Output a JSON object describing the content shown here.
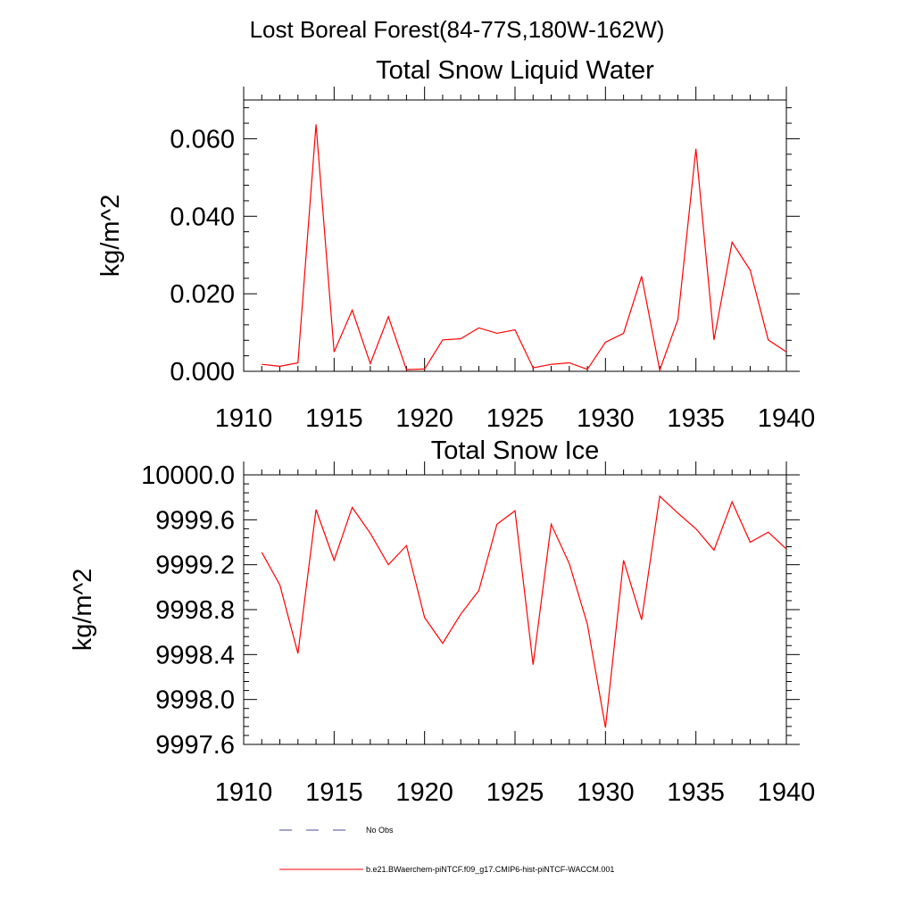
{
  "main_title": "Lost Boreal Forest(84-77S,180W-162W)",
  "chart_data": [
    {
      "type": "line",
      "title": "Total Snow Liquid Water",
      "xlabel": "",
      "ylabel": "kg/m^2",
      "xlim": [
        1910,
        1940
      ],
      "ylim": [
        0.0,
        0.07
      ],
      "xticks": [
        1910,
        1915,
        1920,
        1925,
        1930,
        1935,
        1940
      ],
      "xtick_labels": [
        "1910",
        "1915",
        "1920",
        "1925",
        "1930",
        "1935",
        "1940"
      ],
      "yticks": [
        0.0,
        0.02,
        0.04,
        0.06
      ],
      "ytick_labels": [
        "0.000",
        "0.020",
        "0.040",
        "0.060"
      ],
      "grid": false,
      "x": [
        1911,
        1912,
        1913,
        1914,
        1915,
        1916,
        1917,
        1918,
        1919,
        1920,
        1921,
        1922,
        1923,
        1924,
        1925,
        1926,
        1927,
        1928,
        1929,
        1930,
        1931,
        1932,
        1933,
        1934,
        1935,
        1936,
        1937,
        1938,
        1939,
        1940
      ],
      "series": [
        {
          "name": "b.e21.BWaerchem-piNTCF.f09_g17.CMIP6-hist-piNTCF-WACCM.001",
          "color": "#ff0000",
          "values": [
            0.0018,
            0.0013,
            0.0022,
            0.0637,
            0.005,
            0.0158,
            0.002,
            0.0141,
            0.0004,
            0.0006,
            0.0081,
            0.0084,
            0.0112,
            0.0098,
            0.0107,
            0.0009,
            0.0018,
            0.0022,
            0.0005,
            0.0075,
            0.0098,
            0.0245,
            0.0003,
            0.0133,
            0.0574,
            0.0081,
            0.0333,
            0.0261,
            0.0081,
            0.005
          ]
        }
      ]
    },
    {
      "type": "line",
      "title": "Total Snow Ice",
      "xlabel": "",
      "ylabel": "kg/m^2",
      "xlim": [
        1910,
        1940
      ],
      "ylim": [
        9997.6,
        10000.0
      ],
      "xticks": [
        1910,
        1915,
        1920,
        1925,
        1930,
        1935,
        1940
      ],
      "xtick_labels": [
        "1910",
        "1915",
        "1920",
        "1925",
        "1930",
        "1935",
        "1940"
      ],
      "yticks": [
        9997.6,
        9998.0,
        9998.4,
        9998.8,
        9999.2,
        9999.6,
        10000.0
      ],
      "ytick_labels": [
        "9997.6",
        "9998.0",
        "9998.4",
        "9998.8",
        "9999.2",
        "9999.6",
        "10000.0"
      ],
      "grid": false,
      "x": [
        1911,
        1912,
        1913,
        1914,
        1915,
        1916,
        1917,
        1918,
        1919,
        1920,
        1921,
        1922,
        1923,
        1924,
        1925,
        1926,
        1927,
        1928,
        1929,
        1930,
        1931,
        1932,
        1933,
        1934,
        1935,
        1936,
        1937,
        1938,
        1939,
        1940
      ],
      "series": [
        {
          "name": "b.e21.BWaerchem-piNTCF.f09_g17.CMIP6-hist-piNTCF-WACCM.001",
          "color": "#ff0000",
          "values": [
            9999.31,
            9999.02,
            9998.41,
            9999.69,
            9999.24,
            9999.71,
            9999.48,
            9999.2,
            9999.37,
            9998.73,
            9998.5,
            9998.76,
            9998.97,
            9999.56,
            9999.68,
            9998.31,
            9999.56,
            9999.21,
            9998.67,
            9997.75,
            9999.24,
            9998.71,
            9999.81,
            9999.66,
            9999.52,
            9999.33,
            9999.76,
            9999.4,
            9999.49,
            9999.34
          ]
        }
      ]
    }
  ],
  "legend": {
    "placement": "bottom",
    "items": [
      {
        "label": "No Obs",
        "color": "#4a4aa0",
        "style": "dashed"
      },
      {
        "label": "b.e21.BWaerchem-piNTCF.f09_g17.CMIP6-hist-piNTCF-WACCM.001",
        "color": "#ff0000",
        "style": "solid"
      }
    ]
  }
}
